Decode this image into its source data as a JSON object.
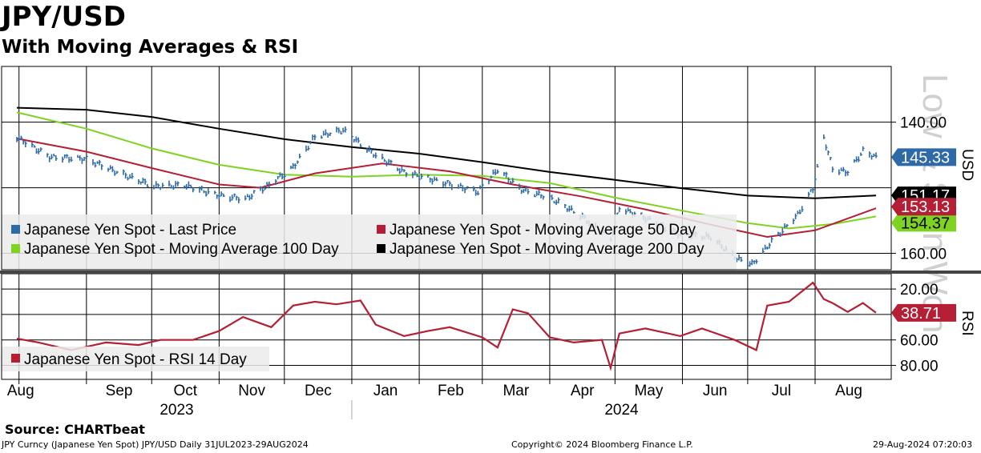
{
  "header": {
    "title": "JPY/USD",
    "subtitle": "With Moving Averages & RSI"
  },
  "footer": {
    "source": "Source: CHARTbeat",
    "ticker": "JPY Curncy (Japanese Yen Spot) JPY/USD  Daily 31JUL2023-29AUG2024",
    "copyright": "Copyright© 2024 Bloomberg Finance L.P.",
    "timestamp": "29-Aug-2024 07:20:03"
  },
  "watermark": "Low & Shin Won",
  "colors": {
    "price": "#2e6aa7",
    "ma50": "#b51f35",
    "ma100": "#7ed321",
    "ma200": "#000000",
    "rsi": "#b51f35",
    "legend_bg": "#ebebeb"
  },
  "chart_data": [
    {
      "type": "line",
      "panel": "price",
      "x_axis": {
        "months": [
          "Aug",
          "Sep",
          "Oct",
          "Nov",
          "Dec",
          "Jan",
          "Feb",
          "Mar",
          "Apr",
          "May",
          "Jun",
          "Jul",
          "Aug"
        ],
        "years": [
          "2023",
          "2024"
        ],
        "range": [
          "2023-07-31",
          "2024-08-29"
        ]
      },
      "y_axis": {
        "label": "USD",
        "inverted": true,
        "range": [
          131.5,
          162.5
        ],
        "ticks": [
          "140.00",
          "160.00"
        ]
      },
      "grid": true,
      "legend_position": "bottom-left",
      "series": [
        {
          "name": "Japanese Yen Spot - Last Price",
          "style": "ohlc-bars",
          "last": "145.33",
          "points": [
            [
              "2023-07-31",
              142.3
            ],
            [
              "2023-08-15",
              145.3
            ],
            [
              "2023-09-01",
              145.6
            ],
            [
              "2023-09-15",
              147.6
            ],
            [
              "2023-10-02",
              149.8
            ],
            [
              "2023-10-16",
              149.6
            ],
            [
              "2023-11-01",
              151.2
            ],
            [
              "2023-11-13",
              151.7
            ],
            [
              "2023-11-24",
              149.5
            ],
            [
              "2023-12-05",
              146.9
            ],
            [
              "2023-12-15",
              142.2
            ],
            [
              "2023-12-28",
              141.2
            ],
            [
              "2024-01-10",
              144.6
            ],
            [
              "2024-01-25",
              147.6
            ],
            [
              "2024-02-12",
              149.2
            ],
            [
              "2024-02-28",
              150.6
            ],
            [
              "2024-03-08",
              147.2
            ],
            [
              "2024-03-19",
              150.3
            ],
            [
              "2024-04-01",
              151.5
            ],
            [
              "2024-04-15",
              154.2
            ],
            [
              "2024-04-29",
              157.8
            ],
            [
              "2024-05-03",
              153.1
            ],
            [
              "2024-05-15",
              154.6
            ],
            [
              "2024-05-31",
              157.2
            ],
            [
              "2024-06-14",
              157.5
            ],
            [
              "2024-06-26",
              160.8
            ],
            [
              "2024-07-03",
              161.7
            ],
            [
              "2024-07-12",
              158.2
            ],
            [
              "2024-07-24",
              154.1
            ],
            [
              "2024-07-31",
              150.1
            ],
            [
              "2024-08-05",
              142.3
            ],
            [
              "2024-08-09",
              147.1
            ],
            [
              "2024-08-16",
              147.6
            ],
            [
              "2024-08-23",
              144.4
            ],
            [
              "2024-08-29",
              145.33
            ]
          ]
        },
        {
          "name": "Japanese Yen Spot - Moving Average 50 Day",
          "last": "153.13",
          "points": [
            [
              "2023-07-31",
              142.5
            ],
            [
              "2023-09-01",
              144.5
            ],
            [
              "2023-10-01",
              147.0
            ],
            [
              "2023-11-01",
              149.5
            ],
            [
              "2023-11-20",
              150.0
            ],
            [
              "2023-12-15",
              147.8
            ],
            [
              "2024-01-15",
              146.3
            ],
            [
              "2024-02-15",
              147.5
            ],
            [
              "2024-03-15",
              149.5
            ],
            [
              "2024-04-15",
              151.3
            ],
            [
              "2024-05-15",
              153.3
            ],
            [
              "2024-06-15",
              155.7
            ],
            [
              "2024-07-10",
              157.5
            ],
            [
              "2024-08-01",
              156.5
            ],
            [
              "2024-08-29",
              153.13
            ]
          ]
        },
        {
          "name": "Japanese Yen Spot - Moving Average 100 Day",
          "last": "154.37",
          "points": [
            [
              "2023-07-31",
              138.5
            ],
            [
              "2023-09-01",
              141.0
            ],
            [
              "2023-10-01",
              144.0
            ],
            [
              "2023-11-01",
              146.5
            ],
            [
              "2023-12-01",
              148.0
            ],
            [
              "2024-01-01",
              148.3
            ],
            [
              "2024-02-01",
              148.0
            ],
            [
              "2024-03-01",
              148.2
            ],
            [
              "2024-04-01",
              149.3
            ],
            [
              "2024-05-01",
              151.5
            ],
            [
              "2024-06-01",
              153.5
            ],
            [
              "2024-07-01",
              155.4
            ],
            [
              "2024-07-20",
              156.2
            ],
            [
              "2024-08-10",
              155.5
            ],
            [
              "2024-08-29",
              154.37
            ]
          ]
        },
        {
          "name": "Japanese Yen Spot - Moving Average 200 Day",
          "last": "151.17",
          "points": [
            [
              "2023-07-31",
              137.8
            ],
            [
              "2023-09-01",
              138.1
            ],
            [
              "2023-10-01",
              139.2
            ],
            [
              "2023-11-01",
              141.0
            ],
            [
              "2023-12-01",
              142.6
            ],
            [
              "2024-01-01",
              143.8
            ],
            [
              "2024-02-01",
              144.8
            ],
            [
              "2024-03-01",
              146.1
            ],
            [
              "2024-04-01",
              147.6
            ],
            [
              "2024-05-01",
              148.8
            ],
            [
              "2024-06-01",
              150.1
            ],
            [
              "2024-07-01",
              151.2
            ],
            [
              "2024-08-01",
              151.6
            ],
            [
              "2024-08-29",
              151.17
            ]
          ]
        }
      ]
    },
    {
      "type": "line",
      "panel": "rsi",
      "y_axis": {
        "label": "RSI",
        "inverted": true,
        "range": [
          8,
          91
        ],
        "ticks": [
          "20.00",
          "60.00",
          "80.00"
        ]
      },
      "grid": true,
      "legend_position": "bottom-left",
      "series": [
        {
          "name": "Japanese Yen Spot - RSI 14 Day",
          "last": "38.71",
          "points": [
            [
              "2023-07-31",
              59
            ],
            [
              "2023-08-10",
              62
            ],
            [
              "2023-08-25",
              68
            ],
            [
              "2023-09-10",
              62
            ],
            [
              "2023-09-25",
              64
            ],
            [
              "2023-10-05",
              60
            ],
            [
              "2023-10-20",
              60
            ],
            [
              "2023-11-01",
              53
            ],
            [
              "2023-11-12",
              42
            ],
            [
              "2023-11-25",
              50
            ],
            [
              "2023-12-05",
              33
            ],
            [
              "2023-12-15",
              30
            ],
            [
              "2023-12-25",
              32
            ],
            [
              "2024-01-05",
              29
            ],
            [
              "2024-01-12",
              48
            ],
            [
              "2024-01-25",
              57
            ],
            [
              "2024-02-05",
              53
            ],
            [
              "2024-02-15",
              50
            ],
            [
              "2024-03-01",
              58
            ],
            [
              "2024-03-08",
              66
            ],
            [
              "2024-03-15",
              36
            ],
            [
              "2024-03-22",
              39
            ],
            [
              "2024-04-01",
              58
            ],
            [
              "2024-04-12",
              62
            ],
            [
              "2024-04-25",
              60
            ],
            [
              "2024-04-29",
              82
            ],
            [
              "2024-05-03",
              55
            ],
            [
              "2024-05-15",
              51
            ],
            [
              "2024-05-31",
              57
            ],
            [
              "2024-06-10",
              51
            ],
            [
              "2024-06-25",
              60
            ],
            [
              "2024-07-05",
              68
            ],
            [
              "2024-07-10",
              33
            ],
            [
              "2024-07-20",
              30
            ],
            [
              "2024-07-31",
              15
            ],
            [
              "2024-08-05",
              28
            ],
            [
              "2024-08-09",
              31
            ],
            [
              "2024-08-16",
              38
            ],
            [
              "2024-08-23",
              31
            ],
            [
              "2024-08-29",
              38.71
            ]
          ]
        }
      ]
    }
  ]
}
